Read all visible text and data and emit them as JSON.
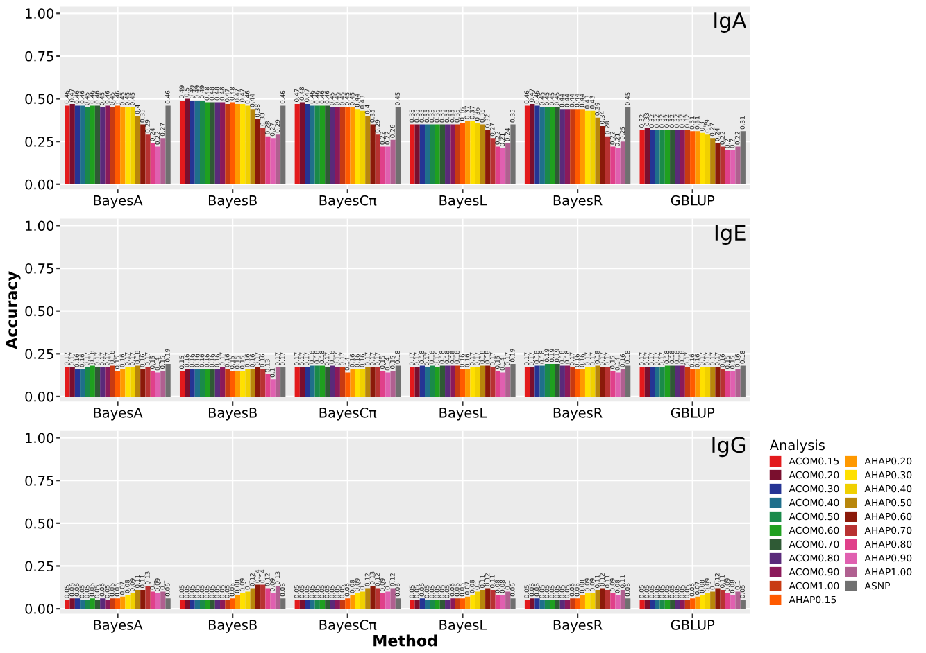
{
  "chart_data": [
    {
      "type": "bar",
      "title": "IgA",
      "categories": [
        "BayesA",
        "BayesB",
        "BayesCπ",
        "BayesL",
        "BayesR",
        "GBLUP"
      ],
      "ylim": [
        -0.03,
        1.04
      ],
      "yticks": [
        {
          "value": 0,
          "label": "0.00"
        },
        {
          "value": 0.25,
          "label": "0.25"
        },
        {
          "value": 0.5,
          "label": "0.50"
        },
        {
          "value": 0.75,
          "label": "0.75"
        },
        {
          "value": 1,
          "label": "1.00"
        }
      ],
      "grid": true,
      "data_labels": true,
      "legend": false,
      "series": [
        {
          "color": "#e31a1c",
          "values": [
            0.46,
            0.49,
            0.47,
            0.35,
            0.46,
            0.32
          ]
        },
        {
          "color": "#7a0f2e",
          "values": [
            0.47,
            0.5,
            0.48,
            0.35,
            0.47,
            0.33
          ]
        },
        {
          "color": "#253494",
          "values": [
            0.46,
            0.49,
            0.47,
            0.35,
            0.46,
            0.32
          ]
        },
        {
          "color": "#1f6f8b",
          "values": [
            0.46,
            0.49,
            0.46,
            0.35,
            0.45,
            0.32
          ]
        },
        {
          "color": "#1a8a4a",
          "values": [
            0.45,
            0.49,
            0.46,
            0.35,
            0.45,
            0.32
          ]
        },
        {
          "color": "#1fa01f",
          "values": [
            0.46,
            0.48,
            0.46,
            0.35,
            0.45,
            0.32
          ]
        },
        {
          "color": "#2f5a35",
          "values": [
            0.46,
            0.48,
            0.46,
            0.35,
            0.45,
            0.32
          ]
        },
        {
          "color": "#5a2a7a",
          "values": [
            0.45,
            0.48,
            0.45,
            0.35,
            0.44,
            0.32
          ]
        },
        {
          "color": "#8b1a5a",
          "values": [
            0.46,
            0.48,
            0.45,
            0.35,
            0.44,
            0.32
          ]
        },
        {
          "color": "#c83a12",
          "values": [
            0.45,
            0.47,
            0.45,
            0.35,
            0.44,
            0.32
          ]
        },
        {
          "color": "#ff5a00",
          "values": [
            0.46,
            0.48,
            0.45,
            0.36,
            0.44,
            0.31
          ]
        },
        {
          "color": "#ff9900",
          "values": [
            0.45,
            0.47,
            0.45,
            0.37,
            0.44,
            0.31
          ]
        },
        {
          "color": "#ffe000",
          "values": [
            0.45,
            0.47,
            0.44,
            0.37,
            0.43,
            0.3
          ]
        },
        {
          "color": "#f0d000",
          "values": [
            0.45,
            0.46,
            0.43,
            0.36,
            0.43,
            0.29
          ]
        },
        {
          "color": "#b8860b",
          "values": [
            0.4,
            0.44,
            0.4,
            0.35,
            0.39,
            0.27
          ]
        },
        {
          "color": "#8b1a0a",
          "values": [
            0.35,
            0.38,
            0.35,
            0.32,
            0.34,
            0.24
          ]
        },
        {
          "color": "#b83232",
          "values": [
            0.29,
            0.33,
            0.29,
            0.27,
            0.28,
            0.22
          ]
        },
        {
          "color": "#e0408a",
          "values": [
            0.24,
            0.28,
            0.22,
            0.22,
            0.22,
            0.2
          ]
        },
        {
          "color": "#e060b0",
          "values": [
            0.22,
            0.27,
            0.22,
            0.21,
            0.21,
            0.2
          ]
        },
        {
          "color": "#b06090",
          "values": [
            0.27,
            0.29,
            0.26,
            0.24,
            0.25,
            0.22
          ]
        },
        {
          "color": "#707070",
          "values": [
            0.46,
            0.46,
            0.45,
            0.35,
            0.45,
            0.31
          ]
        }
      ]
    },
    {
      "type": "bar",
      "title": "IgE",
      "ylabel": "Accuracy",
      "categories": [
        "BayesA",
        "BayesB",
        "BayesCπ",
        "BayesL",
        "BayesR",
        "GBLUP"
      ],
      "ylim": [
        -0.03,
        1.04
      ],
      "yticks": [
        {
          "value": 0,
          "label": "0.00"
        },
        {
          "value": 0.25,
          "label": "0.25"
        },
        {
          "value": 0.5,
          "label": "0.50"
        },
        {
          "value": 0.75,
          "label": "0.75"
        },
        {
          "value": 1,
          "label": "1.00"
        }
      ],
      "grid": true,
      "data_labels": true,
      "legend": false,
      "series": [
        {
          "color": "#e31a1c",
          "values": [
            0.17,
            0.15,
            0.17,
            0.17,
            0.17,
            0.17
          ]
        },
        {
          "color": "#7a0f2e",
          "values": [
            0.17,
            0.16,
            0.17,
            0.17,
            0.17,
            0.17
          ]
        },
        {
          "color": "#253494",
          "values": [
            0.16,
            0.16,
            0.17,
            0.18,
            0.18,
            0.17
          ]
        },
        {
          "color": "#1f6f8b",
          "values": [
            0.16,
            0.16,
            0.18,
            0.17,
            0.18,
            0.17
          ]
        },
        {
          "color": "#1a8a4a",
          "values": [
            0.17,
            0.16,
            0.18,
            0.18,
            0.19,
            0.17
          ]
        },
        {
          "color": "#1fa01f",
          "values": [
            0.18,
            0.16,
            0.18,
            0.17,
            0.19,
            0.18
          ]
        },
        {
          "color": "#2f5a35",
          "values": [
            0.17,
            0.16,
            0.17,
            0.18,
            0.19,
            0.18
          ]
        },
        {
          "color": "#5a2a7a",
          "values": [
            0.17,
            0.16,
            0.18,
            0.18,
            0.18,
            0.18
          ]
        },
        {
          "color": "#8b1a5a",
          "values": [
            0.17,
            0.17,
            0.17,
            0.18,
            0.18,
            0.18
          ]
        },
        {
          "color": "#c83a12",
          "values": [
            0.18,
            0.16,
            0.17,
            0.18,
            0.17,
            0.17
          ]
        },
        {
          "color": "#ff5a00",
          "values": [
            0.15,
            0.15,
            0.14,
            0.16,
            0.16,
            0.16
          ]
        },
        {
          "color": "#ff9900",
          "values": [
            0.16,
            0.15,
            0.16,
            0.16,
            0.16,
            0.16
          ]
        },
        {
          "color": "#ffe000",
          "values": [
            0.17,
            0.15,
            0.16,
            0.17,
            0.17,
            0.17
          ]
        },
        {
          "color": "#f0d000",
          "values": [
            0.17,
            0.16,
            0.16,
            0.17,
            0.17,
            0.17
          ]
        },
        {
          "color": "#b8860b",
          "values": [
            0.18,
            0.16,
            0.17,
            0.18,
            0.18,
            0.17
          ]
        },
        {
          "color": "#8b1a0a",
          "values": [
            0.16,
            0.17,
            0.17,
            0.18,
            0.17,
            0.17
          ]
        },
        {
          "color": "#b83232",
          "values": [
            0.17,
            0.16,
            0.17,
            0.17,
            0.17,
            0.16
          ]
        },
        {
          "color": "#e0408a",
          "values": [
            0.15,
            0.13,
            0.15,
            0.15,
            0.15,
            0.15
          ]
        },
        {
          "color": "#e060b0",
          "values": [
            0.14,
            0.1,
            0.14,
            0.14,
            0.14,
            0.15
          ]
        },
        {
          "color": "#b06090",
          "values": [
            0.15,
            0.17,
            0.15,
            0.17,
            0.16,
            0.16
          ]
        },
        {
          "color": "#707070",
          "values": [
            0.19,
            0.17,
            0.18,
            0.19,
            0.18,
            0.18
          ]
        }
      ]
    },
    {
      "type": "bar",
      "title": "IgG",
      "xlabel": "Method",
      "legend_title": "Analysis",
      "categories": [
        "BayesA",
        "BayesB",
        "BayesCπ",
        "BayesL",
        "BayesR",
        "GBLUP"
      ],
      "ylim": [
        -0.03,
        1.04
      ],
      "yticks": [
        {
          "value": 0,
          "label": "0.00"
        },
        {
          "value": 0.25,
          "label": "0.25"
        },
        {
          "value": 0.5,
          "label": "0.50"
        },
        {
          "value": 0.75,
          "label": "0.75"
        },
        {
          "value": 1,
          "label": "1.00"
        }
      ],
      "grid": true,
      "data_labels": true,
      "legend": "right",
      "series": [
        {
          "name": "ACOM0.15",
          "color": "#e31a1c",
          "values": [
            0.05,
            0.05,
            0.05,
            0.05,
            0.05,
            0.05
          ]
        },
        {
          "name": "ACOM0.20",
          "color": "#7a0f2e",
          "values": [
            0.06,
            0.05,
            0.05,
            0.05,
            0.06,
            0.05
          ]
        },
        {
          "name": "ACOM0.30",
          "color": "#253494",
          "values": [
            0.06,
            0.05,
            0.05,
            0.06,
            0.06,
            0.05
          ]
        },
        {
          "name": "ACOM0.40",
          "color": "#1f6f8b",
          "values": [
            0.05,
            0.05,
            0.05,
            0.05,
            0.05,
            0.05
          ]
        },
        {
          "name": "ACOM0.50",
          "color": "#1a8a4a",
          "values": [
            0.05,
            0.05,
            0.05,
            0.05,
            0.05,
            0.05
          ]
        },
        {
          "name": "ACOM0.60",
          "color": "#1fa01f",
          "values": [
            0.06,
            0.05,
            0.05,
            0.05,
            0.05,
            0.05
          ]
        },
        {
          "name": "ACOM0.70",
          "color": "#2f5a35",
          "values": [
            0.05,
            0.05,
            0.05,
            0.05,
            0.05,
            0.05
          ]
        },
        {
          "name": "ACOM0.80",
          "color": "#5a2a7a",
          "values": [
            0.06,
            0.05,
            0.05,
            0.05,
            0.05,
            0.05
          ]
        },
        {
          "name": "ACOM0.90",
          "color": "#8b1a5a",
          "values": [
            0.05,
            0.05,
            0.05,
            0.06,
            0.05,
            0.05
          ]
        },
        {
          "name": "ACOM1.00",
          "color": "#c83a12",
          "values": [
            0.06,
            0.05,
            0.05,
            0.06,
            0.06,
            0.05
          ]
        },
        {
          "name": "AHAP0.15",
          "color": "#ff5a00",
          "values": [
            0.06,
            0.06,
            0.06,
            0.06,
            0.06,
            0.06
          ]
        },
        {
          "name": "AHAP0.20",
          "color": "#ff9900",
          "values": [
            0.07,
            0.08,
            0.08,
            0.07,
            0.08,
            0.07
          ]
        },
        {
          "name": "AHAP0.30",
          "color": "#ffe000",
          "values": [
            0.08,
            0.09,
            0.09,
            0.08,
            0.09,
            0.08
          ]
        },
        {
          "name": "AHAP0.40",
          "color": "#f0d000",
          "values": [
            0.09,
            0.1,
            0.1,
            0.1,
            0.09,
            0.09
          ]
        },
        {
          "name": "AHAP0.50",
          "color": "#b8860b",
          "values": [
            0.11,
            0.12,
            0.12,
            0.11,
            0.11,
            0.1
          ]
        },
        {
          "name": "AHAP0.60",
          "color": "#8b1a0a",
          "values": [
            0.11,
            0.14,
            0.13,
            0.12,
            0.12,
            0.12
          ]
        },
        {
          "name": "AHAP0.70",
          "color": "#b83232",
          "values": [
            0.13,
            0.14,
            0.12,
            0.11,
            0.11,
            0.11
          ]
        },
        {
          "name": "AHAP0.80",
          "color": "#e0408a",
          "values": [
            0.1,
            0.12,
            0.09,
            0.08,
            0.09,
            0.09
          ]
        },
        {
          "name": "AHAP0.90",
          "color": "#e060b0",
          "values": [
            0.09,
            0.09,
            0.1,
            0.08,
            0.08,
            0.08
          ]
        },
        {
          "name": "AHAP1.00",
          "color": "#b06090",
          "values": [
            0.1,
            0.13,
            0.12,
            0.1,
            0.11,
            0.1
          ]
        },
        {
          "name": "ASNP",
          "color": "#707070",
          "values": [
            0.06,
            0.06,
            0.06,
            0.06,
            0.06,
            0.05
          ]
        }
      ]
    }
  ]
}
